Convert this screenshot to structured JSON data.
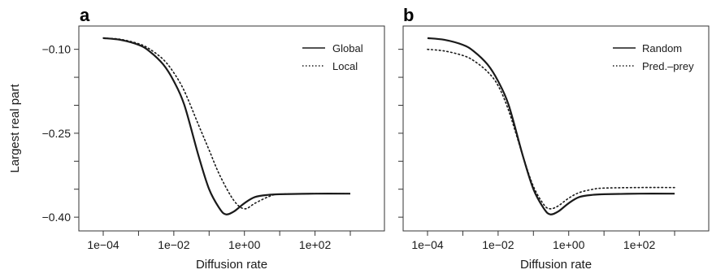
{
  "colors": {
    "line": "#1a1a1a",
    "frame": "#333333"
  },
  "chart_data": [
    {
      "type": "line",
      "panel_label": "a",
      "xlabel": "Diffusion rate",
      "ylabel": "Largest real part",
      "x_scale": "log10",
      "xlim": [
        0.0001,
        1000
      ],
      "ylim": [
        -0.41,
        -0.07
      ],
      "x_ticks": [
        0.0001,
        0.01,
        1,
        100
      ],
      "x_tick_labels": [
        "1e−04",
        "1e−02",
        "1e+00",
        "1e+02"
      ],
      "y_ticks": [
        -0.1,
        -0.25,
        -0.4
      ],
      "y_tick_labels": [
        "−0.10",
        "−0.25",
        "−0.40"
      ],
      "legend": "top-right",
      "series": [
        {
          "name": "Global",
          "style": "solid",
          "x": [
            0.0001,
            0.0003,
            0.001,
            0.002,
            0.005,
            0.01,
            0.02,
            0.05,
            0.1,
            0.2,
            0.3,
            0.5,
            1,
            2,
            5,
            10,
            100,
            1000
          ],
          "y": [
            -0.08,
            -0.083,
            -0.092,
            -0.103,
            -0.127,
            -0.157,
            -0.2,
            -0.29,
            -0.35,
            -0.385,
            -0.395,
            -0.39,
            -0.375,
            -0.364,
            -0.36,
            -0.359,
            -0.358,
            -0.358
          ]
        },
        {
          "name": "Local",
          "style": "dotted",
          "x": [
            0.0001,
            0.0003,
            0.001,
            0.002,
            0.005,
            0.01,
            0.02,
            0.05,
            0.1,
            0.2,
            0.5,
            1,
            2,
            5,
            10,
            100,
            1000
          ],
          "y": [
            -0.08,
            -0.082,
            -0.09,
            -0.099,
            -0.118,
            -0.142,
            -0.175,
            -0.235,
            -0.28,
            -0.325,
            -0.37,
            -0.385,
            -0.375,
            -0.363,
            -0.359,
            -0.358,
            -0.358
          ]
        }
      ]
    },
    {
      "type": "line",
      "panel_label": "b",
      "xlabel": "Diffusion rate",
      "ylabel": "",
      "x_scale": "log10",
      "xlim": [
        0.0001,
        1000
      ],
      "ylim": [
        -0.41,
        -0.07
      ],
      "x_ticks": [
        0.0001,
        0.01,
        1,
        100
      ],
      "x_tick_labels": [
        "1e−04",
        "1e−02",
        "1e+00",
        "1e+02"
      ],
      "y_ticks": [
        -0.1,
        -0.25,
        -0.4
      ],
      "legend": "top-right",
      "series": [
        {
          "name": "Random",
          "style": "solid",
          "x": [
            0.0001,
            0.0003,
            0.001,
            0.002,
            0.005,
            0.01,
            0.02,
            0.05,
            0.1,
            0.2,
            0.3,
            0.5,
            1,
            2,
            5,
            10,
            100,
            1000
          ],
          "y": [
            -0.08,
            -0.083,
            -0.092,
            -0.103,
            -0.127,
            -0.157,
            -0.2,
            -0.29,
            -0.35,
            -0.385,
            -0.395,
            -0.39,
            -0.375,
            -0.364,
            -0.36,
            -0.359,
            -0.358,
            -0.358
          ]
        },
        {
          "name": "Pred.–prey",
          "style": "dotted",
          "x": [
            0.0001,
            0.0003,
            0.001,
            0.002,
            0.005,
            0.01,
            0.02,
            0.05,
            0.1,
            0.2,
            0.3,
            0.5,
            1,
            2,
            5,
            10,
            100,
            1000
          ],
          "y": [
            -0.1,
            -0.103,
            -0.111,
            -0.12,
            -0.14,
            -0.165,
            -0.21,
            -0.29,
            -0.345,
            -0.378,
            -0.385,
            -0.38,
            -0.366,
            -0.356,
            -0.35,
            -0.348,
            -0.347,
            -0.347
          ]
        }
      ]
    }
  ]
}
